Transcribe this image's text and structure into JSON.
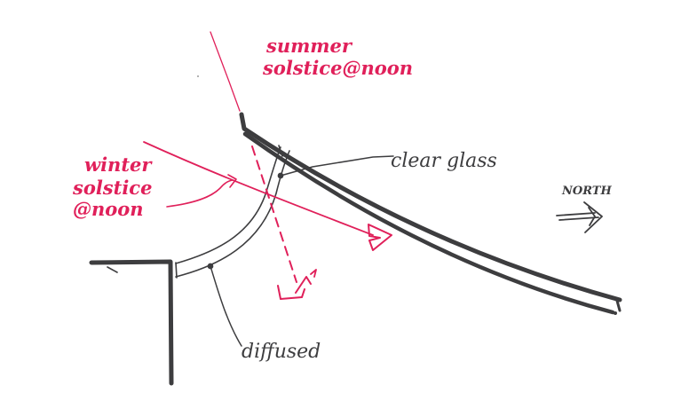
{
  "labels": {
    "summer_line1": "summer",
    "summer_line2": "solstice@noon",
    "winter_line1": "winter",
    "winter_line2": "solstice",
    "winter_line3": "@noon",
    "clear_glass": "clear glass",
    "diffused": "diffused",
    "north": "NORTH"
  },
  "colors": {
    "pink": "#e0205a",
    "dark": "#3d3d3f",
    "background": "#ffffff"
  }
}
